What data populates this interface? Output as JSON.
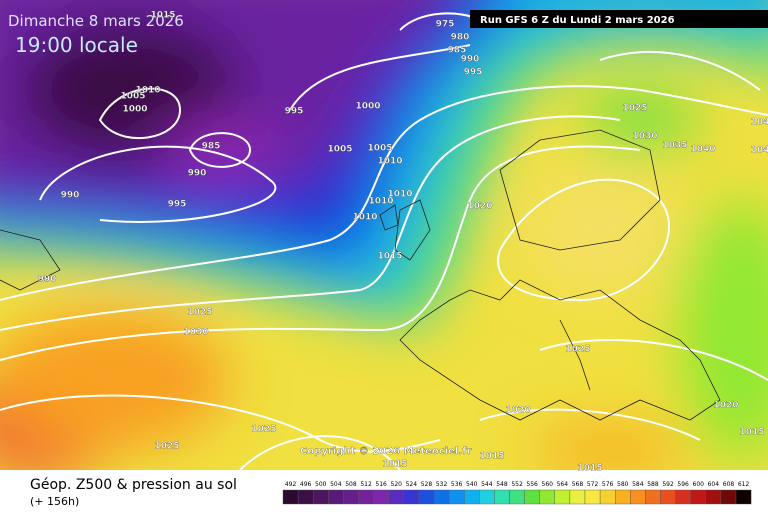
{
  "header": {
    "date": "Dimanche 8 mars 2026",
    "time": "19:00 locale",
    "run": "Run GFS 6 Z du Lundi 2 mars 2026"
  },
  "copyright": "Copyright © 2026 Meteociel.fr",
  "legend": {
    "title": "Géop. Z500 & pression au sol",
    "lead": "(+ 156h)",
    "labels": [
      492,
      496,
      500,
      504,
      508,
      512,
      516,
      520,
      524,
      528,
      532,
      536,
      540,
      544,
      548,
      552,
      556,
      560,
      564,
      568,
      572,
      576,
      580,
      584,
      588,
      592,
      596,
      600,
      604,
      608,
      612
    ],
    "colors": [
      "#2a0a2e",
      "#3a0f45",
      "#4b1560",
      "#5a1a78",
      "#661f8a",
      "#72239a",
      "#7e27aa",
      "#5a2dc0",
      "#3a34d4",
      "#1e50e0",
      "#1070e8",
      "#1090f0",
      "#10b0f0",
      "#20d0e0",
      "#30e0b0",
      "#40e080",
      "#60e040",
      "#90e830",
      "#c0f030",
      "#e8f040",
      "#f8e840",
      "#f8d030",
      "#f8b020",
      "#f89020",
      "#f07020",
      "#e85020",
      "#d83020",
      "#c01818",
      "#a01010",
      "#700808",
      "#100000"
    ]
  },
  "isobars": [
    975,
    980,
    985,
    990,
    995,
    1015,
    1010,
    1005,
    1000,
    995,
    1000,
    985,
    990,
    990,
    995,
    1005,
    1005,
    1010,
    1010,
    1010,
    1010,
    1015,
    1020,
    1025,
    1030,
    1035,
    1040,
    104,
    104,
    990,
    1025,
    1030,
    1025,
    1020,
    1020,
    1015,
    1025,
    1025,
    1015,
    1015,
    1015
  ]
}
